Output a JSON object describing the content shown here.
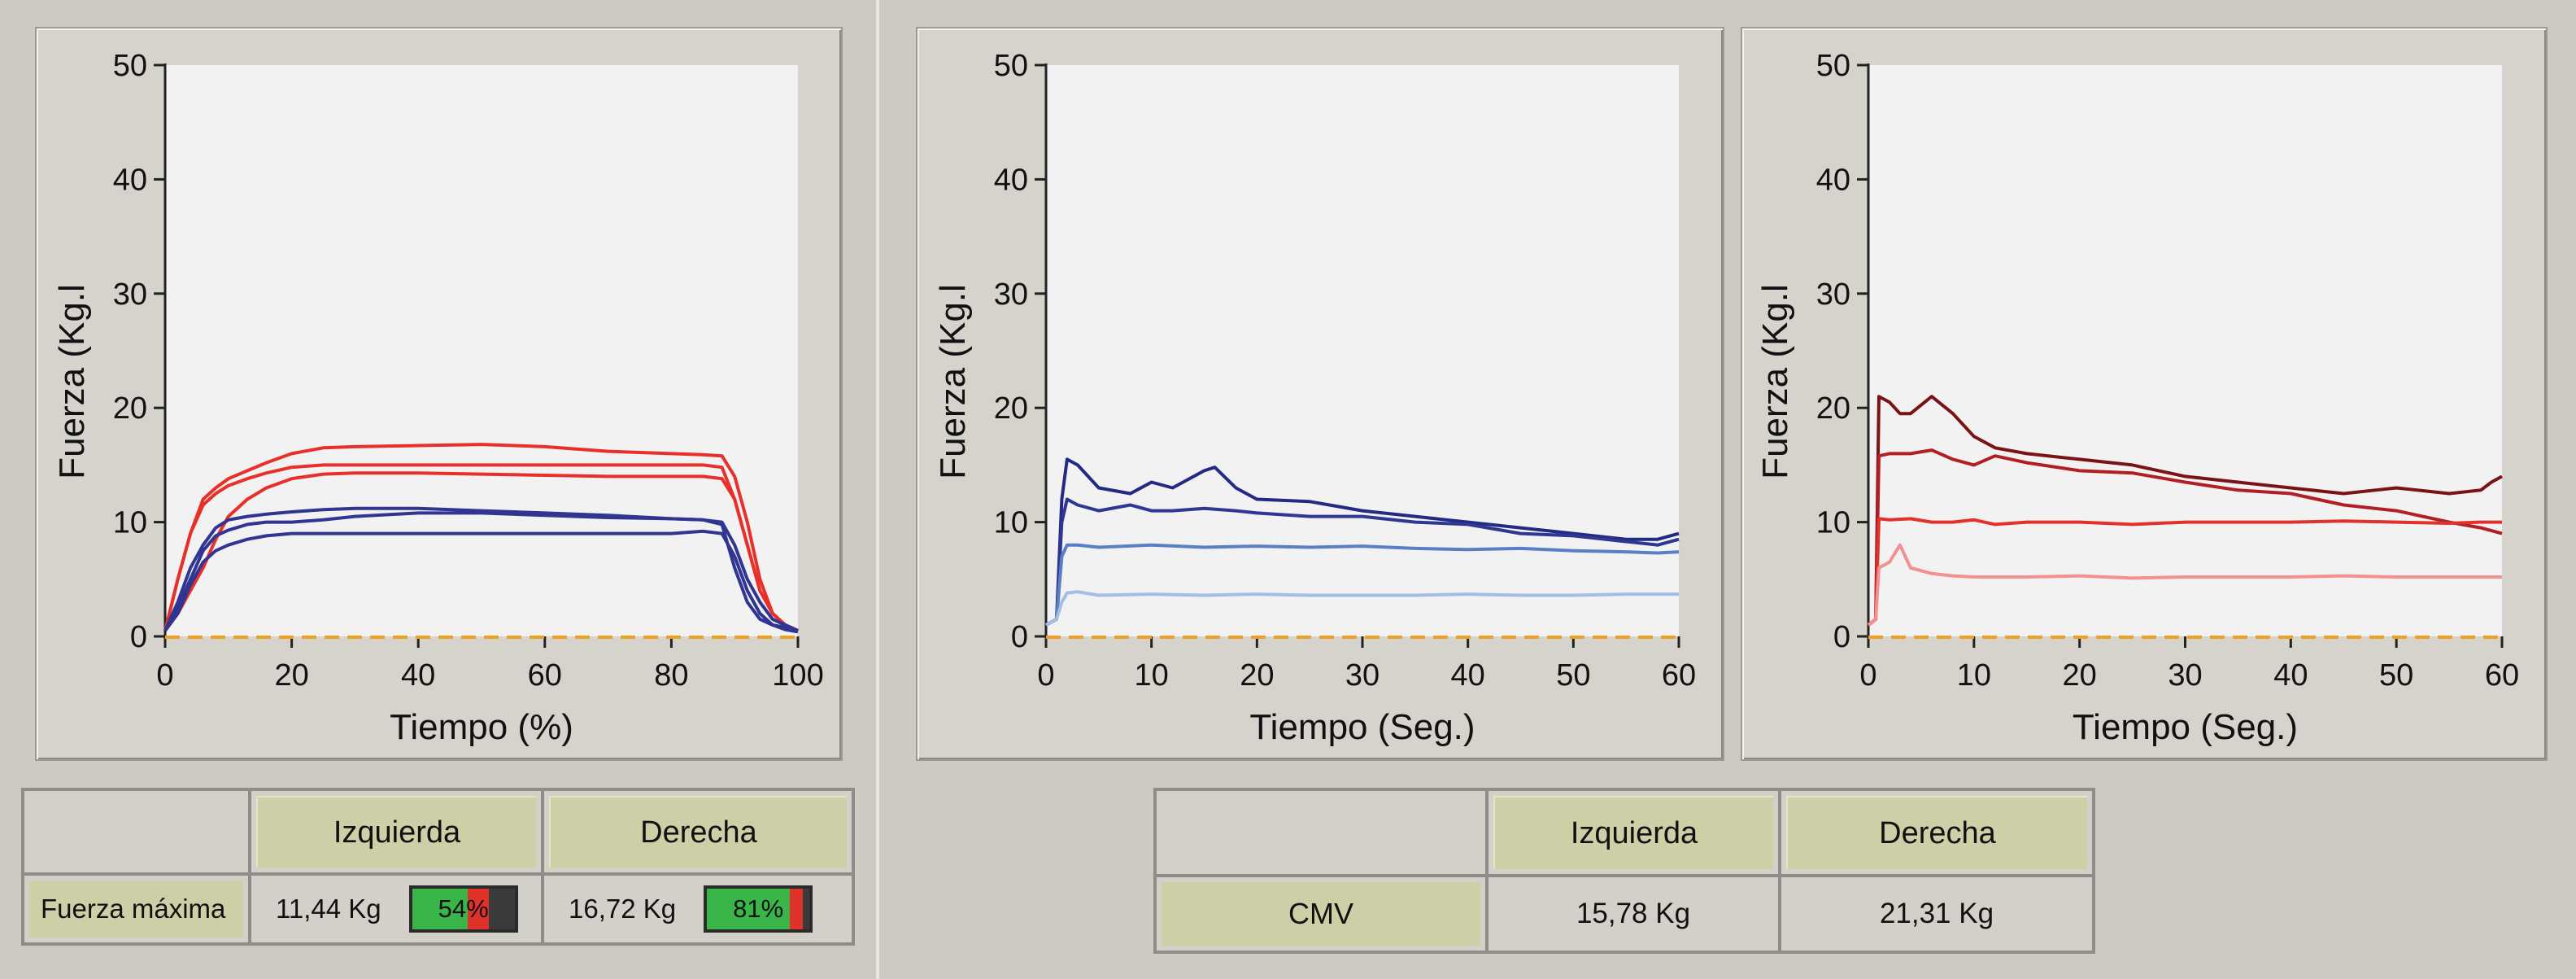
{
  "chart_data": [
    {
      "type": "line",
      "xlabel": "Tiempo (%)",
      "ylabel": "Fuerza (Kg.l",
      "xlim": [
        0,
        100
      ],
      "ylim": [
        0,
        50
      ],
      "xticks": [
        0,
        20,
        40,
        60,
        80,
        100
      ],
      "yticks": [
        0,
        10,
        20,
        30,
        40,
        50
      ],
      "reference_line": {
        "y": 0,
        "color": "#f0a020",
        "style": "dashed"
      },
      "series": [
        {
          "color": "#e8302a",
          "x": [
            0,
            2,
            4,
            6,
            8,
            10,
            13,
            16,
            20,
            25,
            30,
            40,
            50,
            60,
            70,
            80,
            85,
            88,
            90,
            92,
            94,
            96,
            98,
            100
          ],
          "y": [
            0.5,
            5,
            9,
            12,
            13,
            13.8,
            14.5,
            15.2,
            16,
            16.5,
            16.6,
            16.7,
            16.8,
            16.6,
            16.2,
            16,
            15.9,
            15.8,
            14,
            10,
            5,
            2,
            1,
            0.5
          ]
        },
        {
          "color": "#e8302a",
          "x": [
            0,
            2,
            4,
            6,
            8,
            10,
            13,
            16,
            20,
            25,
            30,
            40,
            50,
            60,
            70,
            80,
            85,
            88,
            90,
            92,
            94,
            96,
            98,
            100
          ],
          "y": [
            0.5,
            5,
            9,
            11.5,
            12.5,
            13.2,
            13.8,
            14.3,
            14.8,
            15,
            15,
            15,
            15,
            15,
            15,
            15,
            15,
            14.8,
            12,
            8,
            4,
            2,
            1,
            0.5
          ]
        },
        {
          "color": "#e8302a",
          "x": [
            0,
            2,
            4,
            6,
            8,
            10,
            13,
            16,
            20,
            25,
            30,
            40,
            50,
            60,
            70,
            80,
            85,
            88,
            90,
            92,
            94,
            96,
            98,
            100
          ],
          "y": [
            0.5,
            2,
            4,
            6,
            8.5,
            10.5,
            12,
            13,
            13.8,
            14.2,
            14.3,
            14.3,
            14.2,
            14.1,
            14,
            14,
            14,
            13.8,
            12,
            8,
            4,
            2,
            1,
            0.5
          ]
        },
        {
          "color": "#2f3591",
          "x": [
            0,
            2,
            4,
            6,
            8,
            10,
            13,
            16,
            20,
            25,
            30,
            40,
            50,
            60,
            70,
            80,
            85,
            88,
            90,
            92,
            94,
            96,
            98,
            100
          ],
          "y": [
            0.5,
            3,
            6,
            8,
            9.5,
            10.2,
            10.5,
            10.7,
            10.9,
            11.1,
            11.2,
            11.2,
            11.0,
            10.8,
            10.6,
            10.3,
            10.2,
            10,
            8,
            5,
            3,
            1.5,
            1,
            0.5
          ]
        },
        {
          "color": "#2f3591",
          "x": [
            0,
            2,
            4,
            6,
            8,
            10,
            13,
            16,
            20,
            25,
            30,
            40,
            50,
            60,
            70,
            80,
            85,
            88,
            90,
            92,
            94,
            96,
            98,
            100
          ],
          "y": [
            0.5,
            2.5,
            5,
            7.5,
            8.8,
            9.3,
            9.8,
            10,
            10,
            10.2,
            10.5,
            10.8,
            10.8,
            10.6,
            10.4,
            10.3,
            10.2,
            9.8,
            6,
            3,
            1.5,
            1,
            0.8,
            0.5
          ]
        },
        {
          "color": "#2f3591",
          "x": [
            0,
            2,
            4,
            6,
            8,
            10,
            13,
            16,
            20,
            25,
            30,
            40,
            50,
            60,
            70,
            80,
            85,
            88,
            90,
            92,
            94,
            96,
            98,
            100
          ],
          "y": [
            0.5,
            2,
            4.5,
            6.5,
            7.5,
            8,
            8.5,
            8.8,
            9,
            9,
            9,
            9,
            9,
            9,
            9,
            9,
            9.2,
            9,
            7,
            4,
            2,
            1,
            0.6,
            0.4
          ]
        }
      ]
    },
    {
      "type": "line",
      "xlabel": "Tiempo (Seg.)",
      "ylabel": "Fuerza (Kg.l",
      "xlim": [
        0,
        60
      ],
      "ylim": [
        0,
        50
      ],
      "xticks": [
        0,
        10,
        20,
        30,
        40,
        50,
        60
      ],
      "yticks": [
        0,
        10,
        20,
        30,
        40,
        50
      ],
      "reference_line": {
        "y": 0,
        "color": "#f0a020",
        "style": "dashed"
      },
      "series": [
        {
          "color": "#232a84",
          "x": [
            0,
            1,
            1.5,
            2,
            3,
            5,
            8,
            10,
            12,
            15,
            16,
            18,
            20,
            25,
            30,
            35,
            40,
            45,
            50,
            55,
            58,
            60
          ],
          "y": [
            1,
            1.5,
            12,
            15.5,
            15,
            13,
            12.5,
            13.5,
            13,
            14.5,
            14.8,
            13,
            12,
            11.8,
            11,
            10.5,
            10,
            9.5,
            9,
            8.5,
            8.5,
            9
          ]
        },
        {
          "color": "#2e3791",
          "x": [
            0,
            1,
            1.5,
            2,
            3,
            5,
            8,
            10,
            12,
            15,
            18,
            20,
            25,
            30,
            35,
            40,
            45,
            50,
            55,
            58,
            60
          ],
          "y": [
            1,
            1.5,
            10,
            12,
            11.5,
            11,
            11.5,
            11,
            11,
            11.2,
            11,
            10.8,
            10.5,
            10.5,
            10,
            9.8,
            9,
            8.8,
            8.3,
            8,
            8.5
          ]
        },
        {
          "color": "#5b7fc4",
          "x": [
            0,
            1,
            1.5,
            2,
            3,
            5,
            10,
            15,
            20,
            25,
            30,
            35,
            40,
            45,
            50,
            55,
            58,
            60
          ],
          "y": [
            1,
            1.5,
            7,
            8,
            8,
            7.8,
            8,
            7.8,
            7.9,
            7.8,
            7.9,
            7.7,
            7.6,
            7.7,
            7.5,
            7.4,
            7.3,
            7.4
          ]
        },
        {
          "color": "#a3bde6",
          "x": [
            0,
            1,
            1.5,
            2,
            3,
            5,
            10,
            15,
            20,
            25,
            30,
            35,
            40,
            45,
            50,
            55,
            60
          ],
          "y": [
            1,
            1.5,
            3,
            3.8,
            3.9,
            3.6,
            3.7,
            3.6,
            3.7,
            3.6,
            3.6,
            3.6,
            3.7,
            3.6,
            3.6,
            3.7,
            3.7
          ]
        }
      ]
    },
    {
      "type": "line",
      "xlabel": "Tiempo (Seg.)",
      "ylabel": "Fuerza (Kg.l",
      "xlim": [
        0,
        60
      ],
      "ylim": [
        0,
        50
      ],
      "xticks": [
        0,
        10,
        20,
        30,
        40,
        50,
        60
      ],
      "yticks": [
        0,
        10,
        20,
        30,
        40,
        50
      ],
      "reference_line": {
        "y": 0,
        "color": "#f0a020",
        "style": "dashed"
      },
      "series": [
        {
          "color": "#7a1316",
          "x": [
            0,
            0.7,
            1,
            2,
            3,
            4,
            6,
            8,
            10,
            12,
            15,
            20,
            25,
            30,
            35,
            40,
            45,
            50,
            55,
            58,
            59,
            60
          ],
          "y": [
            1,
            1.5,
            21,
            20.5,
            19.5,
            19.5,
            21,
            19.5,
            17.5,
            16.5,
            16,
            15.5,
            15,
            14,
            13.5,
            13,
            12.5,
            13,
            12.5,
            12.8,
            13.5,
            14
          ]
        },
        {
          "color": "#b11f24",
          "x": [
            0,
            0.7,
            1,
            2,
            4,
            6,
            8,
            10,
            12,
            15,
            20,
            25,
            30,
            35,
            40,
            45,
            50,
            55,
            58,
            60
          ],
          "y": [
            1,
            1.5,
            15.8,
            16,
            16,
            16.3,
            15.5,
            15,
            15.8,
            15.2,
            14.5,
            14.3,
            13.5,
            12.8,
            12.5,
            11.5,
            11,
            10,
            9.5,
            9
          ]
        },
        {
          "color": "#e2312a",
          "x": [
            0,
            0.7,
            1,
            2,
            4,
            6,
            8,
            10,
            12,
            15,
            20,
            25,
            30,
            35,
            40,
            45,
            50,
            55,
            58,
            60
          ],
          "y": [
            1,
            1.5,
            10.3,
            10.2,
            10.3,
            10,
            10,
            10.2,
            9.8,
            10,
            10,
            9.8,
            10,
            10,
            10,
            10.1,
            10,
            9.9,
            10,
            10
          ]
        },
        {
          "color": "#f29191",
          "x": [
            0,
            0.7,
            1,
            2,
            3,
            4,
            6,
            8,
            10,
            15,
            20,
            25,
            30,
            35,
            40,
            45,
            50,
            55,
            60
          ],
          "y": [
            1,
            1.5,
            6,
            6.5,
            8,
            6,
            5.5,
            5.3,
            5.2,
            5.2,
            5.3,
            5.1,
            5.2,
            5.2,
            5.2,
            5.3,
            5.2,
            5.2,
            5.2
          ]
        }
      ]
    }
  ],
  "table_left": {
    "col1": "Izquierda",
    "col2": "Derecha",
    "row_label": "Fuerza máxima",
    "left_value": "11,44 Kg",
    "left_pct_text": "54%",
    "left_pct": 0.54,
    "right_value": "16,72 Kg",
    "right_pct_text": "81%",
    "right_pct": 0.81,
    "green": "#3ab54a",
    "red": "#e0312b"
  },
  "table_right": {
    "col1": "Izquierda",
    "col2": "Derecha",
    "row_label": "CMV",
    "left_value": "15,78 Kg",
    "right_value": "21,31 Kg"
  }
}
